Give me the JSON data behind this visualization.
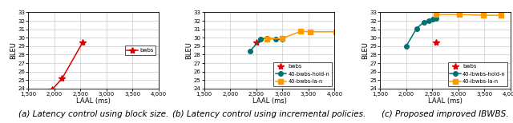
{
  "plot_a": {
    "bwbs": {
      "x": [
        1960,
        2150,
        2550
      ],
      "y": [
        23.9,
        25.2,
        29.5
      ]
    },
    "xlabel": "LAAL (ms)",
    "ylabel": "BLEU",
    "xlim": [
      1500,
      4000
    ],
    "ylim": [
      24,
      33
    ],
    "yticks": [
      24,
      25,
      26,
      27,
      28,
      29,
      30,
      31,
      32,
      33
    ],
    "xticks": [
      1500,
      2000,
      2500,
      3000,
      3500,
      4000
    ],
    "legend_loc": "center right",
    "caption": "(a) Latency control using block size."
  },
  "plot_b": {
    "bwbs": {
      "x": [
        2500
      ],
      "y": [
        29.5
      ]
    },
    "hold": {
      "x": [
        2380,
        2580,
        2700,
        2870,
        2990
      ],
      "y": [
        28.4,
        29.85,
        29.95,
        29.85,
        29.8
      ]
    },
    "la": {
      "x": [
        2700,
        2990,
        3350,
        3530,
        4020
      ],
      "y": [
        29.85,
        29.9,
        30.75,
        30.7,
        30.7
      ]
    },
    "xlabel": "LAAL (ms)",
    "ylabel": "BLEU",
    "xlim": [
      1500,
      4000
    ],
    "ylim": [
      24,
      33
    ],
    "yticks": [
      24,
      25,
      26,
      27,
      28,
      29,
      30,
      31,
      32,
      33
    ],
    "xticks": [
      1500,
      2000,
      2500,
      3000,
      3500,
      4000
    ],
    "legend_bwbs": "bwbs",
    "legend_hold": "40-bwbs-hold-n",
    "legend_la": "40-bwbs-la-n",
    "legend_loc": "lower right",
    "caption": "(b) Latency control using incremental policies."
  },
  "plot_c": {
    "bwbs": {
      "x": [
        2570
      ],
      "y": [
        29.5
      ]
    },
    "hold": {
      "x": [
        2000,
        2200,
        2340,
        2430,
        2510,
        2570
      ],
      "y": [
        29.0,
        31.1,
        31.85,
        32.0,
        32.15,
        32.3
      ]
    },
    "la": {
      "x": [
        2570,
        3020,
        3480,
        3820
      ],
      "y": [
        32.75,
        32.75,
        32.65,
        32.65
      ]
    },
    "xlabel": "LAAL (ms)",
    "ylabel": "BLEU",
    "xlim": [
      1500,
      4000
    ],
    "ylim": [
      24,
      33
    ],
    "yticks": [
      24,
      25,
      26,
      27,
      28,
      29,
      30,
      31,
      32,
      33
    ],
    "xticks": [
      1500,
      2000,
      2500,
      3000,
      3500,
      4000
    ],
    "legend_bwbs": "bwbs",
    "legend_hold": "40-ibwbs-hold-n",
    "legend_la": "40-ibwbs-la-n",
    "legend_loc": "lower right",
    "caption": "(c) Proposed improved IBWBS."
  },
  "colors": {
    "bwbs": "#dd0000",
    "hold": "#007070",
    "la": "#ff9900"
  },
  "bwbs_marker": "*",
  "hold_marker": "o",
  "la_marker": "s",
  "bwbs_ms": 6,
  "hold_ms": 4,
  "la_ms": 4,
  "linewidth": 1.1,
  "caption_fontsize": 7.5,
  "tick_fontsize": 5.0,
  "label_fontsize": 6.0,
  "legend_fontsize": 4.8
}
